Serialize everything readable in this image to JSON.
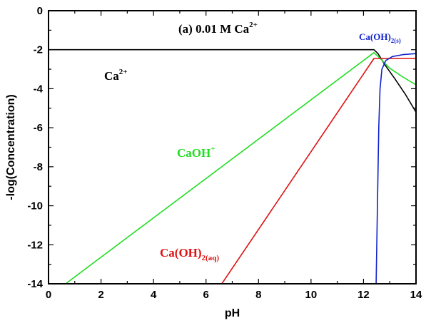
{
  "chart_data": {
    "type": "line",
    "title": "(a) 0.01 M Ca",
    "title_sup": "2+",
    "xlabel": "pH",
    "ylabel": "-log(Concentration)",
    "xlim": [
      0,
      14
    ],
    "ylim": [
      -14,
      0
    ],
    "x_ticks": [
      0,
      2,
      4,
      6,
      8,
      10,
      12,
      14
    ],
    "y_ticks": [
      0,
      -2,
      -4,
      -6,
      -8,
      -10,
      -12,
      -14
    ],
    "x_tick_labels": [
      "0",
      "2",
      "4",
      "6",
      "8",
      "10",
      "12",
      "14"
    ],
    "y_tick_labels": [
      "0",
      "-2",
      "-4",
      "-6",
      "-8",
      "-10",
      "-12",
      "-14"
    ],
    "grid": false,
    "legend": "none",
    "series": [
      {
        "name": "Ca",
        "label_sup": "2+",
        "label_sub": "",
        "color": "#000000",
        "points": [
          [
            0,
            -2
          ],
          [
            12.4,
            -2
          ],
          [
            12.55,
            -2.2
          ],
          [
            12.8,
            -2.75
          ],
          [
            13.2,
            -3.5
          ],
          [
            13.6,
            -4.3
          ],
          [
            14,
            -5.2
          ]
        ]
      },
      {
        "name": "CaOH",
        "label_sup": "+",
        "label_sub": "",
        "color": "#22dd22",
        "points": [
          [
            0.65,
            -14
          ],
          [
            12.4,
            -2.15
          ],
          [
            12.6,
            -2.4
          ],
          [
            13.0,
            -2.95
          ],
          [
            13.5,
            -3.4
          ],
          [
            14,
            -3.8
          ]
        ]
      },
      {
        "name": "Ca(OH)",
        "label_sup": "",
        "label_sub": "2(aq)",
        "color": "#dd1111",
        "points": [
          [
            6.6,
            -14
          ],
          [
            12.4,
            -2.45
          ],
          [
            14,
            -2.45
          ]
        ]
      },
      {
        "name": "Ca(OH)",
        "label_sup": "",
        "label_sub": "2(s)",
        "color": "#1122cc",
        "points": [
          [
            12.48,
            -14
          ],
          [
            12.58,
            -6.0
          ],
          [
            12.63,
            -4.0
          ],
          [
            12.7,
            -3.0
          ],
          [
            12.85,
            -2.55
          ],
          [
            13.1,
            -2.35
          ],
          [
            13.5,
            -2.25
          ],
          [
            14,
            -2.2
          ]
        ]
      }
    ]
  }
}
